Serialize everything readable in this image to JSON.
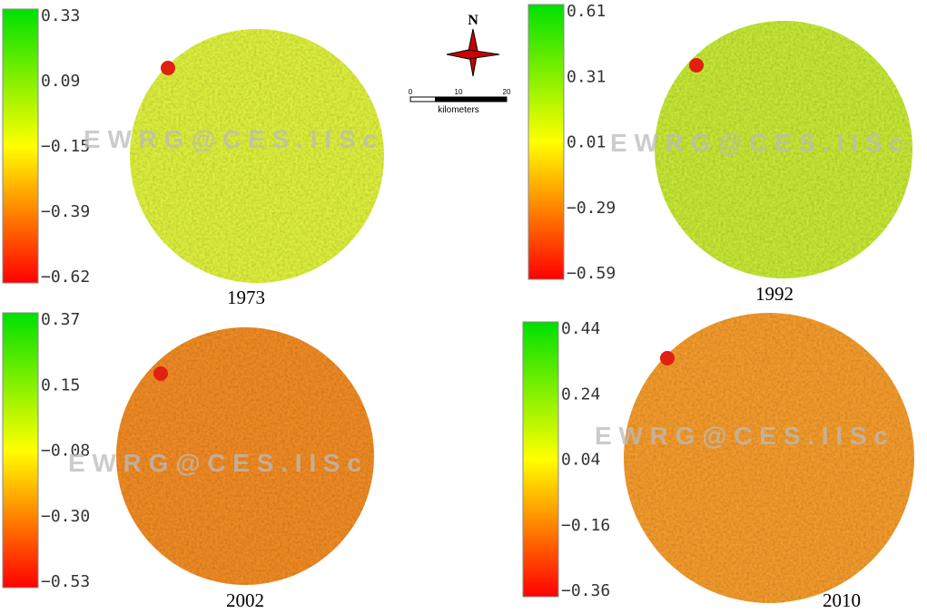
{
  "panels": [
    {
      "year": "1973",
      "legend_labels": [
        "0.33",
        "0.09",
        "−0.15",
        "−0.39",
        "−0.62"
      ]
    },
    {
      "year": "1992",
      "legend_labels": [
        "0.61",
        "0.31",
        "0.01",
        "−0.29",
        "−0.59"
      ]
    },
    {
      "year": "2002",
      "legend_labels": [
        "0.37",
        "0.15",
        "−0.08",
        "−0.30",
        "−0.53"
      ]
    },
    {
      "year": "2010",
      "legend_labels": [
        "0.44",
        "0.24",
        "0.04",
        "−0.16",
        "−0.36"
      ]
    }
  ],
  "north_arrow": "N",
  "scale_bar": {
    "ticks": [
      "0",
      "10",
      "20"
    ],
    "unit": "kilometers"
  },
  "watermark": "E W R G @ C E S . I I S c"
}
